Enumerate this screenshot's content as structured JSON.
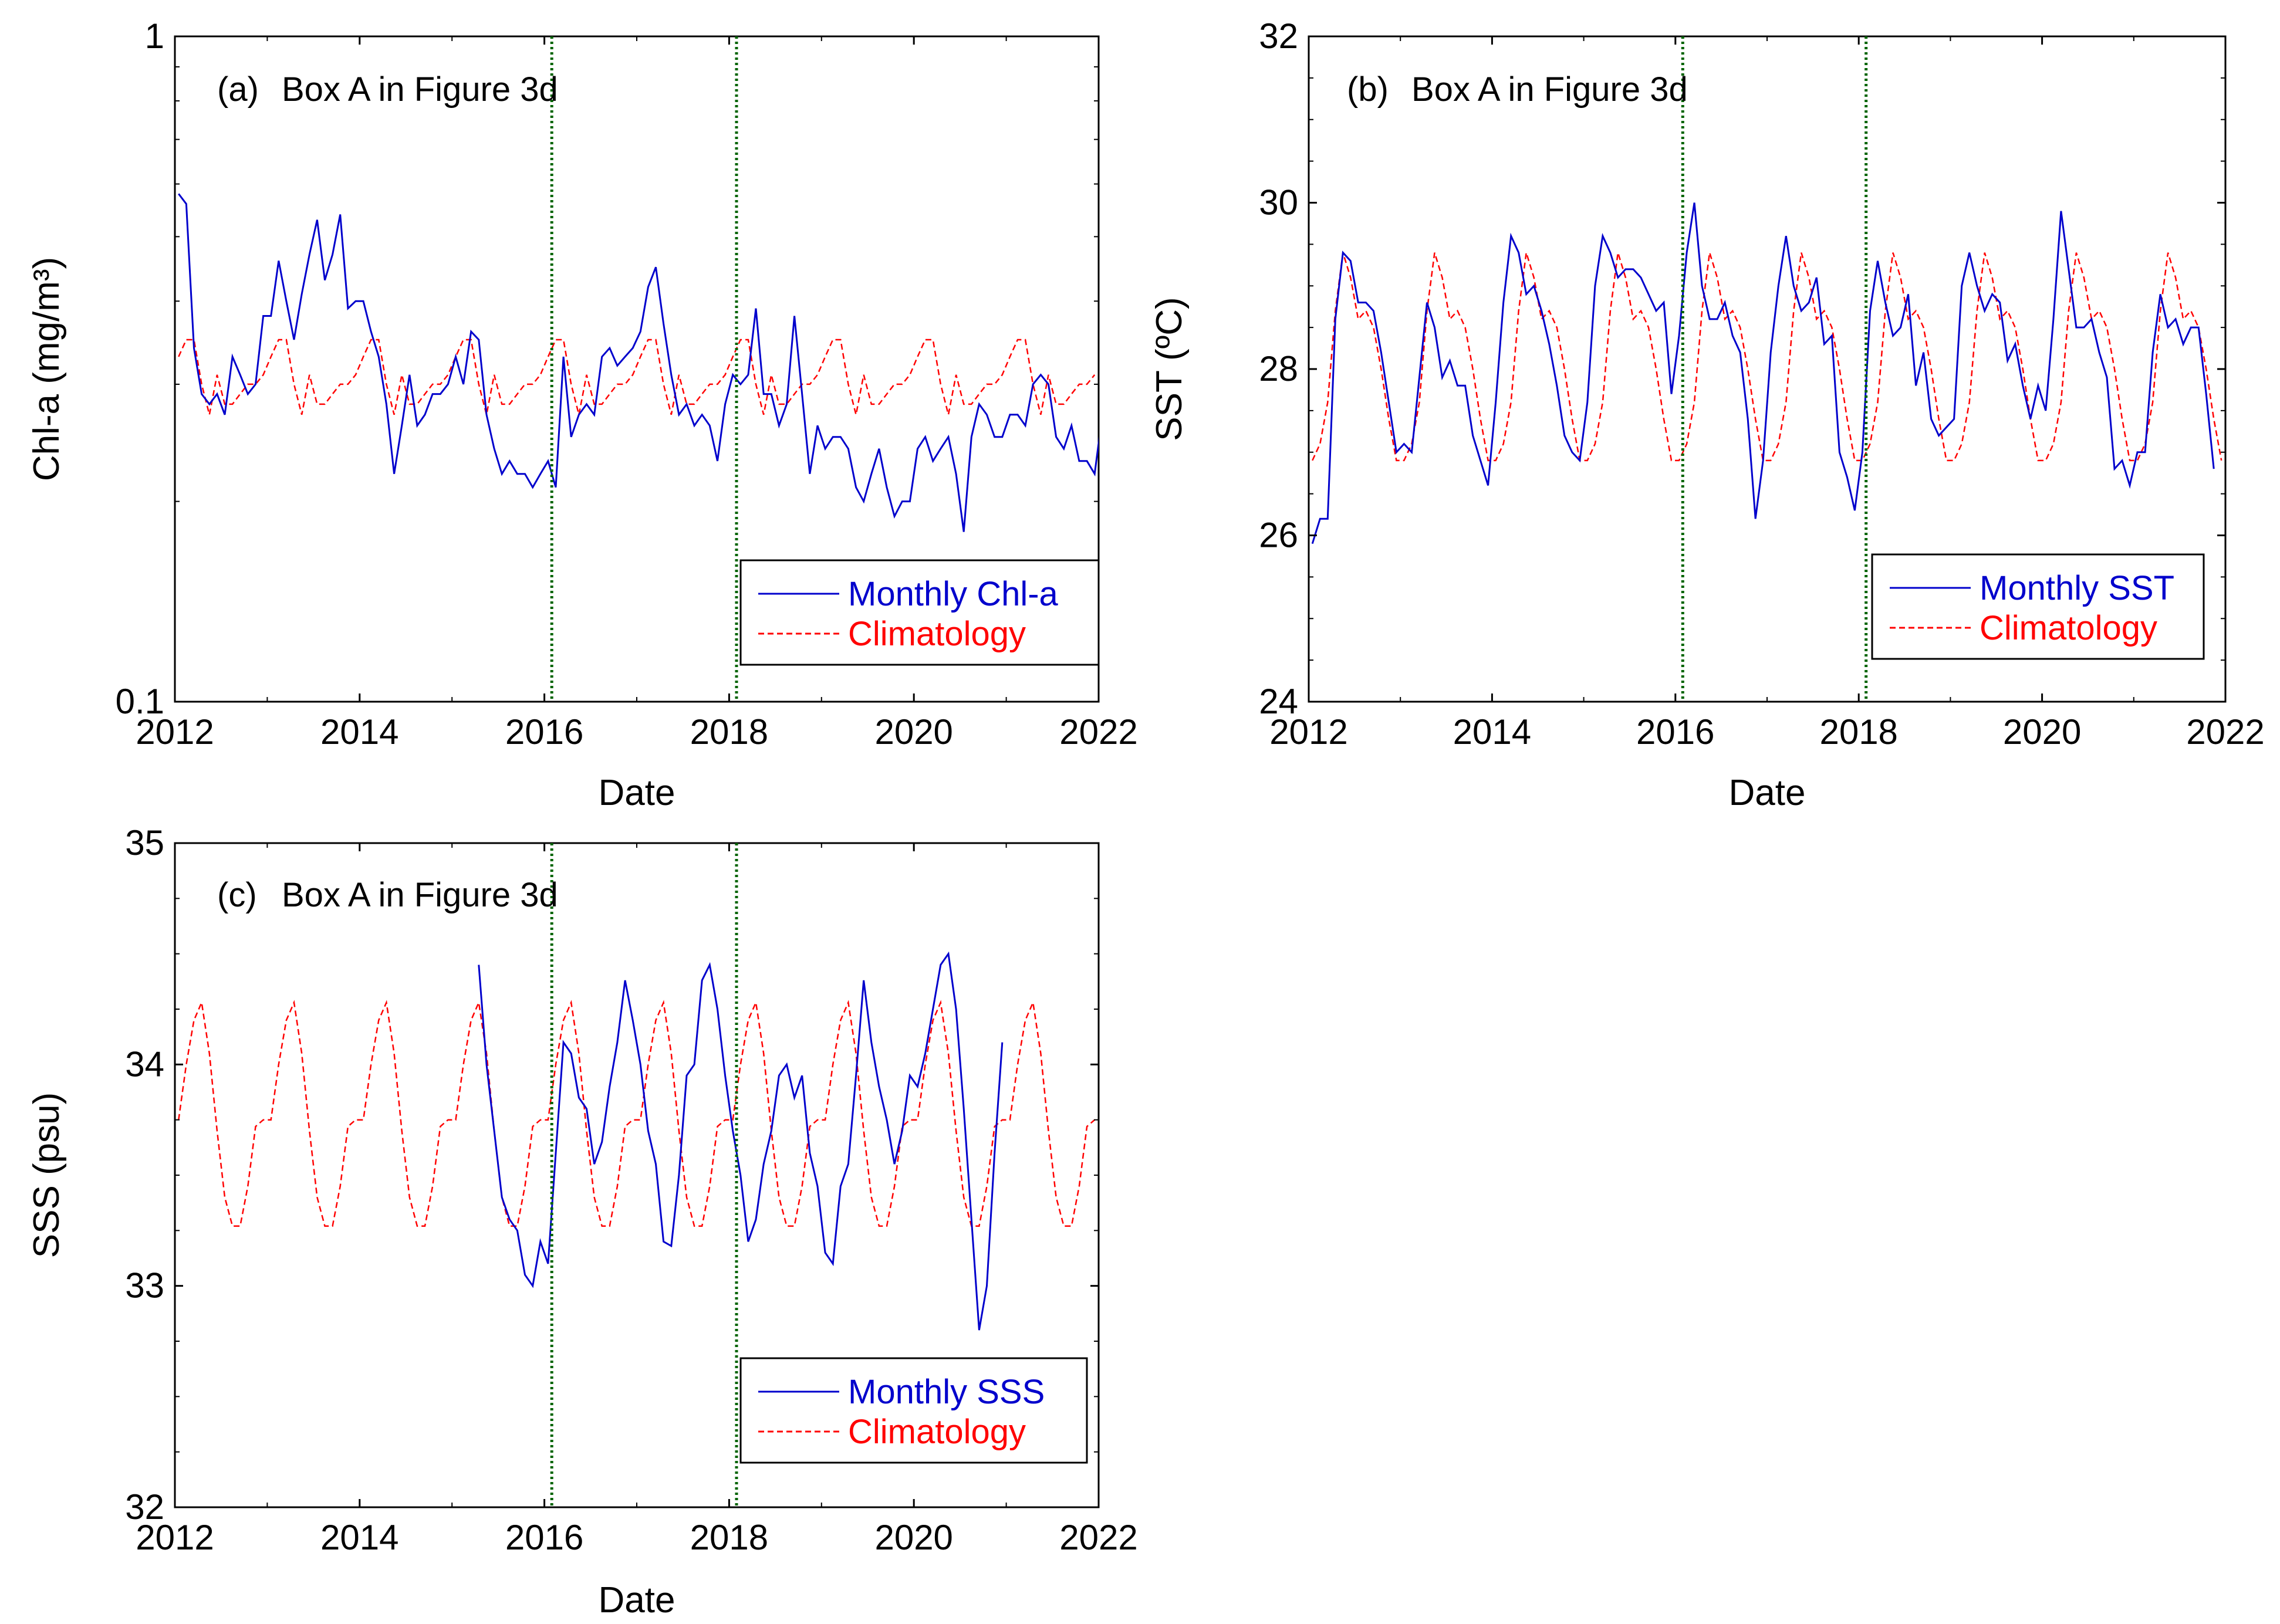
{
  "chart_data": [
    {
      "type": "line",
      "panel_label": "(a)",
      "title": "Box A in Figure 3d",
      "xlabel": "Date",
      "ylabel": "Chl-a (mg/m³)",
      "yscale": "log",
      "xlim": [
        2012,
        2022
      ],
      "ylim": [
        0.1,
        1
      ],
      "x_ticks": [
        "2012",
        "2014",
        "2016",
        "2018",
        "2020",
        "2022"
      ],
      "y_ticks": [
        "0.1",
        "1"
      ],
      "vlines": [
        2016.08,
        2018.08
      ],
      "legend_position": "bottom-right",
      "series": [
        {
          "name": "Monthly Chl-a",
          "color": "#0000cc",
          "style": "solid",
          "t_start": 2012.04,
          "values": [
            0.58,
            0.56,
            0.34,
            0.29,
            0.28,
            0.29,
            0.27,
            0.33,
            0.31,
            0.29,
            0.3,
            0.38,
            0.38,
            0.46,
            0.4,
            0.35,
            0.41,
            0.47,
            0.53,
            0.43,
            0.47,
            0.54,
            0.39,
            0.4,
            0.4,
            0.36,
            0.33,
            0.28,
            0.22,
            0.26,
            0.31,
            0.26,
            0.27,
            0.29,
            0.29,
            0.3,
            0.33,
            0.3,
            0.36,
            0.35,
            0.27,
            0.24,
            0.22,
            0.23,
            0.22,
            0.22,
            0.21,
            0.22,
            0.23,
            0.21,
            0.33,
            0.25,
            0.27,
            0.28,
            0.27,
            0.33,
            0.34,
            0.32,
            0.33,
            0.34,
            0.36,
            0.42,
            0.45,
            0.37,
            0.31,
            0.27,
            0.28,
            0.26,
            0.27,
            0.26,
            0.23,
            0.28,
            0.31,
            0.3,
            0.31,
            0.39,
            0.29,
            0.29,
            0.26,
            0.28,
            0.38,
            0.29,
            0.22,
            0.26,
            0.24,
            0.25,
            0.25,
            0.24,
            0.21,
            0.2,
            0.22,
            0.24,
            0.21,
            0.19,
            0.2,
            0.2,
            0.24,
            0.25,
            0.23,
            0.24,
            0.25,
            0.22,
            0.18,
            0.25,
            0.28,
            0.27,
            0.25,
            0.25,
            0.27,
            0.27,
            0.26,
            0.3,
            0.31,
            0.3,
            0.25,
            0.24,
            0.26,
            0.23,
            0.23,
            0.22,
            0.27
          ]
        },
        {
          "name": "Climatology",
          "color": "#ff0000",
          "style": "dashed",
          "t_start": 2012.04,
          "cycle": [
            0.33,
            0.35,
            0.35,
            0.3,
            0.27,
            0.31,
            0.28,
            0.28,
            0.29,
            0.3,
            0.3,
            0.31
          ]
        }
      ]
    },
    {
      "type": "line",
      "panel_label": "(b)",
      "title": "Box A in Figure 3d",
      "xlabel": "Date",
      "ylabel": "SST (ºC)",
      "xlim": [
        2012,
        2022
      ],
      "ylim": [
        24,
        32
      ],
      "x_ticks": [
        "2012",
        "2014",
        "2016",
        "2018",
        "2020",
        "2022"
      ],
      "y_ticks": [
        "24",
        "26",
        "28",
        "30",
        "32"
      ],
      "vlines": [
        2016.08,
        2018.08
      ],
      "legend_position": "bottom-right",
      "series": [
        {
          "name": "Monthly SST",
          "color": "#0000cc",
          "style": "solid",
          "t_start": 2012.04,
          "values": [
            25.9,
            26.2,
            26.2,
            28.6,
            29.4,
            29.3,
            28.8,
            28.8,
            28.7,
            28.2,
            27.6,
            27.0,
            27.1,
            27.0,
            27.9,
            28.8,
            28.5,
            27.9,
            28.1,
            27.8,
            27.8,
            27.2,
            26.9,
            26.6,
            27.6,
            28.8,
            29.6,
            29.4,
            28.9,
            29.0,
            28.7,
            28.3,
            27.8,
            27.2,
            27.0,
            26.9,
            27.6,
            29.0,
            29.6,
            29.4,
            29.1,
            29.2,
            29.2,
            29.1,
            28.9,
            28.7,
            28.8,
            27.7,
            28.4,
            29.4,
            30.0,
            29.0,
            28.6,
            28.6,
            28.8,
            28.4,
            28.2,
            27.4,
            26.2,
            26.9,
            28.2,
            29.0,
            29.6,
            29.0,
            28.7,
            28.8,
            29.1,
            28.3,
            28.4,
            27.0,
            26.7,
            26.3,
            27.0,
            28.7,
            29.3,
            28.8,
            28.4,
            28.5,
            28.9,
            27.8,
            28.2,
            27.4,
            27.2,
            27.3,
            27.4,
            29.0,
            29.4,
            29.0,
            28.7,
            28.9,
            28.8,
            28.1,
            28.3,
            27.8,
            27.4,
            27.8,
            27.5,
            28.6,
            29.9,
            29.2,
            28.5,
            28.5,
            28.6,
            28.2,
            27.9,
            26.8,
            26.9,
            26.6,
            27.0,
            27.0,
            28.2,
            28.9,
            28.5,
            28.6,
            28.3,
            28.5,
            28.5,
            27.7,
            26.8
          ]
        },
        {
          "name": "Climatology",
          "color": "#ff0000",
          "style": "dashed",
          "t_start": 2012.04,
          "cycle": [
            26.9,
            27.1,
            27.6,
            28.7,
            29.4,
            29.1,
            28.6,
            28.7,
            28.5,
            28.0,
            27.4,
            26.9
          ]
        }
      ]
    },
    {
      "type": "line",
      "panel_label": "(c)",
      "title": "Box A in Figure 3d",
      "xlabel": "Date",
      "ylabel": "SSS (psu)",
      "xlim": [
        2012,
        2022
      ],
      "ylim": [
        32,
        35
      ],
      "x_ticks": [
        "2012",
        "2014",
        "2016",
        "2018",
        "2020",
        "2022"
      ],
      "y_ticks": [
        "32",
        "33",
        "34",
        "35"
      ],
      "vlines": [
        2016.08,
        2018.08
      ],
      "legend_position": "bottom-right",
      "series": [
        {
          "name": "Monthly SSS",
          "color": "#0000cc",
          "style": "solid",
          "t_start": 2015.29,
          "values": [
            34.45,
            34.0,
            33.7,
            33.4,
            33.3,
            33.25,
            33.05,
            33.0,
            33.2,
            33.1,
            33.6,
            34.1,
            34.05,
            33.85,
            33.8,
            33.55,
            33.65,
            33.9,
            34.1,
            34.38,
            34.2,
            34.0,
            33.7,
            33.55,
            33.2,
            33.18,
            33.5,
            33.95,
            34.0,
            34.38,
            34.45,
            34.25,
            33.95,
            33.7,
            33.5,
            33.2,
            33.3,
            33.55,
            33.7,
            33.95,
            34.0,
            33.85,
            33.95,
            33.6,
            33.45,
            33.15,
            33.1,
            33.45,
            33.55,
            33.95,
            34.38,
            34.1,
            33.9,
            33.75,
            33.55,
            33.7,
            33.95,
            33.9,
            34.05,
            34.25,
            34.45,
            34.5,
            34.25,
            33.8,
            33.3,
            32.8,
            33.0,
            33.6,
            34.1
          ]
        },
        {
          "name": "Climatology",
          "color": "#ff0000",
          "style": "dashed",
          "t_start": 2012.04,
          "cycle": [
            33.75,
            34.0,
            34.2,
            34.28,
            34.05,
            33.7,
            33.4,
            33.27,
            33.27,
            33.45,
            33.72,
            33.75
          ]
        }
      ]
    }
  ]
}
